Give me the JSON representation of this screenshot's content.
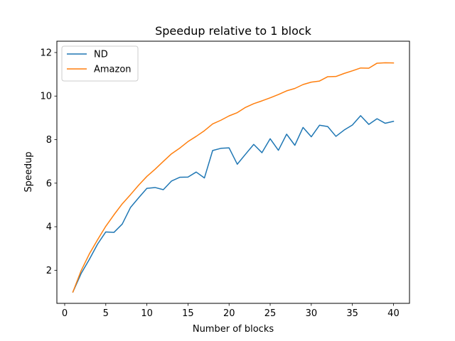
{
  "chart_data": {
    "type": "line",
    "title": "Speedup relative to 1 block",
    "xlabel": "Number of blocks",
    "ylabel": "Speedup",
    "xlim": [
      -0.95,
      41.95
    ],
    "ylim": [
      0.48,
      12.52
    ],
    "xticks": [
      0,
      5,
      10,
      15,
      20,
      25,
      30,
      35,
      40
    ],
    "yticks": [
      2,
      4,
      6,
      8,
      10,
      12
    ],
    "grid": false,
    "legend_position": "top-left",
    "x": [
      1,
      2,
      3,
      4,
      5,
      6,
      7,
      8,
      9,
      10,
      11,
      12,
      13,
      14,
      15,
      16,
      17,
      18,
      19,
      20,
      21,
      22,
      23,
      24,
      25,
      26,
      27,
      28,
      29,
      30,
      31,
      32,
      33,
      34,
      35,
      36,
      37,
      38,
      39,
      40
    ],
    "series": [
      {
        "name": "ND",
        "color": "#1f77b4",
        "values": [
          1.0,
          1.85,
          2.5,
          3.2,
          3.76,
          3.74,
          4.12,
          4.88,
          5.33,
          5.76,
          5.8,
          5.7,
          6.1,
          6.27,
          6.28,
          6.51,
          6.24,
          7.5,
          7.6,
          7.62,
          6.87,
          7.33,
          7.78,
          7.4,
          8.04,
          7.51,
          8.25,
          7.74,
          8.56,
          8.13,
          8.66,
          8.6,
          8.15,
          8.44,
          8.67,
          9.1,
          8.7,
          8.96,
          8.75,
          8.84
        ]
      },
      {
        "name": "Amazon",
        "color": "#ff7f0e",
        "values": [
          1.0,
          1.98,
          2.75,
          3.4,
          4.02,
          4.55,
          5.05,
          5.47,
          5.91,
          6.31,
          6.64,
          7.0,
          7.35,
          7.61,
          7.91,
          8.15,
          8.41,
          8.72,
          8.89,
          9.09,
          9.24,
          9.48,
          9.65,
          9.78,
          9.92,
          10.07,
          10.24,
          10.35,
          10.53,
          10.64,
          10.69,
          10.89,
          10.9,
          11.04,
          11.16,
          11.29,
          11.28,
          11.51,
          11.53,
          11.52
        ]
      }
    ]
  }
}
